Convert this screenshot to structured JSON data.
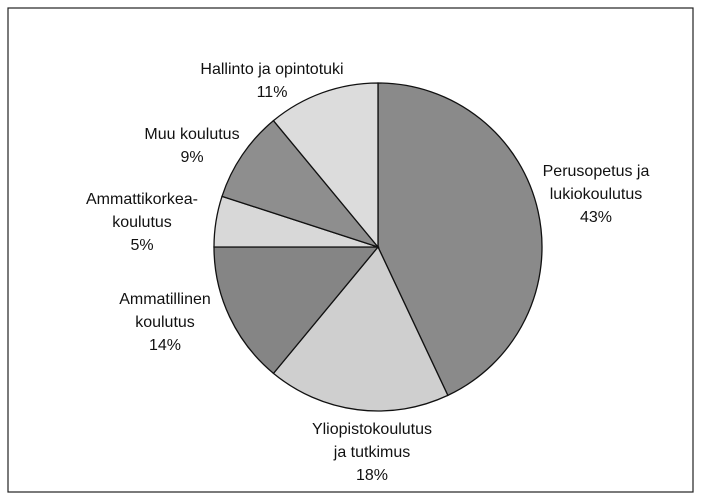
{
  "chart_data": {
    "type": "pie",
    "categories": [
      "Perusopetus ja\nlukiokoulutus",
      "Yliopistokoulutus\nja tutkimus",
      "Ammatillinen\nkoulutus",
      "Ammattikorkea-\nkoulutus",
      "Muu koulutus",
      "Hallinto ja opintotuki"
    ],
    "values": [
      43,
      18,
      14,
      5,
      9,
      11
    ],
    "value_labels": [
      "43%",
      "18%",
      "14%",
      "5%",
      "9%",
      "11%"
    ],
    "colors": [
      "#8a8a8a",
      "#cfcfcf",
      "#858585",
      "#d8d8d8",
      "#8e8e8e",
      "#dcdcdc"
    ]
  }
}
